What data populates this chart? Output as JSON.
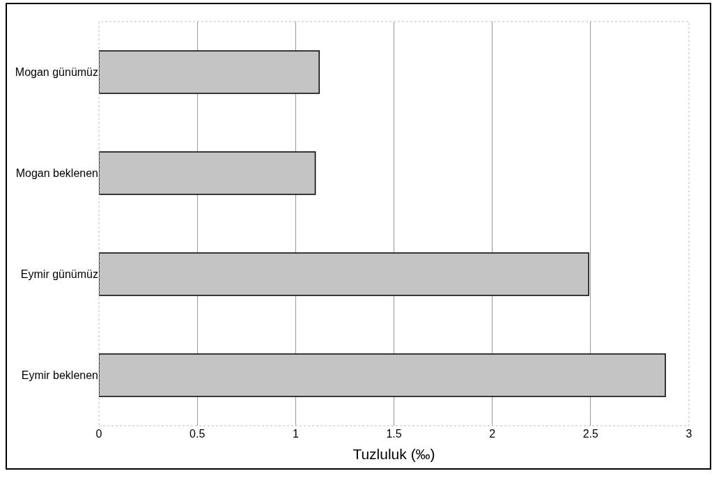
{
  "chart_data": {
    "type": "bar",
    "orientation": "horizontal",
    "xlabel": "Tuzluluk (‰)",
    "categories": [
      "Mogan günümüz",
      "Mogan beklenen",
      "Eymir günümüz",
      "Eymir beklenen"
    ],
    "values": [
      1.12,
      1.1,
      2.49,
      2.88
    ],
    "color": "#c4c4c4",
    "xlim": [
      0,
      3
    ],
    "xticks": [
      0,
      0.5,
      1,
      1.5,
      2,
      2.5,
      3
    ],
    "grid": "x"
  }
}
